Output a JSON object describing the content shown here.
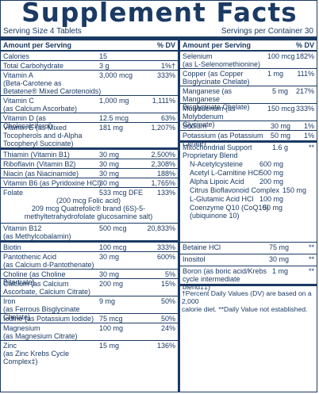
{
  "header": {
    "title": "Supplement Facts",
    "serving_size": "Serving Size 4 Tablets",
    "servings_per_container": "Servings per Container 30"
  },
  "left": {
    "col_amount": "Amount per Serving",
    "col_dv": "% DV",
    "rows": [
      {
        "name": "Calories",
        "amount": "15",
        "dv": ""
      },
      {
        "name": "Total Carbohydrate",
        "amount": "3 g",
        "dv": "1%†"
      },
      {
        "name": "Vitamin A\n(Beta-Carotene as\nBetatene® Mixed Carotenoids)",
        "amount": "3,000 mcg",
        "dv": "333%"
      },
      {
        "name": "Vitamin C\n(as Calcium Ascorbate)",
        "amount": "1,000 mg",
        "dv": "1,111%"
      },
      {
        "name": "Vitamin D (as Cholecalciferol)",
        "amount": "12.5 mcg",
        "dv": "63%"
      },
      {
        "name": "Vitamin E (as Mixed\nTocopherols and d-Alpha\nTocopheryl Succinate)",
        "amount": "181 mg",
        "dv": "1,207%"
      },
      {
        "name": "Thiamin (Vitamin B1)",
        "amount": "30 mg",
        "dv": "2,500%"
      },
      {
        "name": "Riboflavin (Vitamin B2)",
        "amount": "30 mg",
        "dv": "2,308%"
      },
      {
        "name": "Niacin (as Niacinamide)",
        "amount": "30 mg",
        "dv": "188%"
      },
      {
        "name": "Vitamin B6 (as Pyridoxine HCl)",
        "amount": "30 mg",
        "dv": "1,765%"
      },
      {
        "name": "Folate",
        "amount": "533 mcg DFE",
        "dv": "133%"
      },
      {
        "name": "Vitamin B12\n(as Methylcobalamin)",
        "amount": "500 mcg",
        "dv": "20,833%"
      },
      {
        "name": "Biotin",
        "amount": "100 mcg",
        "dv": "333%"
      },
      {
        "name": "Pantothenic Acid\n(as Calcium d-Pantothenate)",
        "amount": "30 mg",
        "dv": "600%"
      },
      {
        "name": "Choline (as Choline Bitartrate)",
        "amount": "30 mg",
        "dv": "5%"
      },
      {
        "name": "Calcium (as Calcium\nAscorbate, Calcium Citrate)",
        "amount": "200 mg",
        "dv": "15%"
      },
      {
        "name": "Iron\n(as Ferrous Bisglycinate Chelate)",
        "amount": "9 mg",
        "dv": "50%"
      },
      {
        "name": "Iodine (as Potassium Iodide)",
        "amount": "75 mcg",
        "dv": "50%"
      },
      {
        "name": "Magnesium\n(as Magnesium Citrate)",
        "amount": "100 mg",
        "dv": "24%"
      },
      {
        "name": "Zinc\n(as Zinc Krebs Cycle Complex‡)",
        "amount": "15 mg",
        "dv": "136%"
      }
    ],
    "folate_detail": "(200 mcg Folic acid)\n209 mcg Quatrefolic® brand (6S)-5-\nmethyltetrahydrofolate glucosamine salt)"
  },
  "right": {
    "col_amount": "Amount per Serving",
    "col_dv": "% DV",
    "rows": [
      {
        "name": "Selenium\n(as L-Selenomethionine)",
        "amount": "100 mcg",
        "dv": "182%"
      },
      {
        "name": "Copper (as Copper\nBisglycinate Chelate)",
        "amount": "1 mg",
        "dv": "111%"
      },
      {
        "name": "Manganese (as Manganese\nBisglycinate Chelate)",
        "amount": "5 mg",
        "dv": "217%"
      },
      {
        "name": "Molybdenum (as Molybdenum\nGlycinate)",
        "amount": "150 mcg",
        "dv": "333%"
      },
      {
        "name": "Sodium",
        "amount": "30 mg",
        "dv": "1%"
      },
      {
        "name": "Potassium (as Potassium Citrate)",
        "amount": "50 mg",
        "dv": "1%"
      },
      {
        "name": "Mitochondrial Support\nProprietary Blend",
        "amount": "1.6 g",
        "dv": "**"
      },
      {
        "name": "Betaine HCl",
        "amount": "75 mg",
        "dv": "**"
      },
      {
        "name": "Inositol",
        "amount": "30 mg",
        "dv": "**"
      },
      {
        "name": "Boron (as boric acid/Krebs\ncycle intermediate blend‡‡)",
        "amount": "1 mg",
        "dv": "**"
      }
    ],
    "blend_items": [
      {
        "name": "N-Acetylcysteine",
        "amount": "600 mg"
      },
      {
        "name": "Acetyl L-Carnitine HCl",
        "amount": "500 mg"
      },
      {
        "name": "Alpha Lipoic Acid",
        "amount": "200 mg"
      },
      {
        "name": "Citrus Bioflavonoid Complex",
        "amount": "150 mg"
      },
      {
        "name": "L-Glutamic Acid HCl",
        "amount": "100 mg"
      },
      {
        "name": "Coenzyme Q10 (CoQ10)\n(ubiquinone 10)",
        "amount": "50 mg"
      }
    ],
    "footnote": "†Percent Daily Values (DV) are based on a 2,000\ncalorie diet. **Daily Value not established."
  }
}
